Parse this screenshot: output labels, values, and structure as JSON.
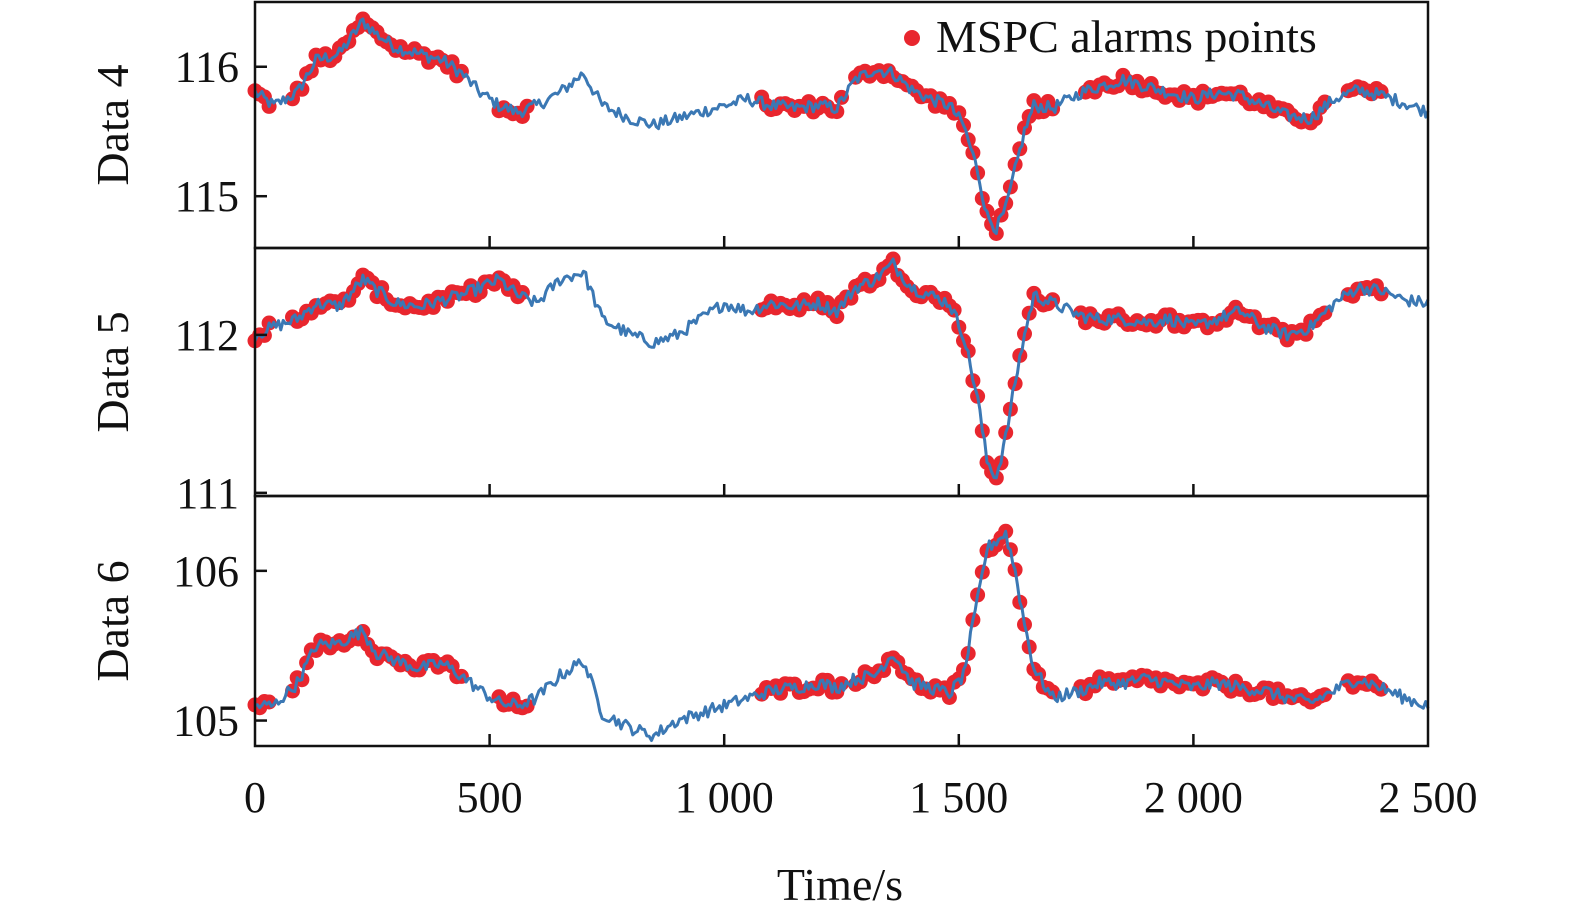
{
  "chart_data": [
    {
      "type": "line",
      "ylabel": "Data 4",
      "xlim": [
        0,
        2500
      ],
      "ylim": [
        114.6,
        116.5
      ],
      "yticks": [
        115,
        116
      ],
      "series": [
        {
          "values": [
            [
              0,
              115.8
            ],
            [
              40,
              115.7
            ],
            [
              90,
              115.8
            ],
            [
              130,
              116.05
            ],
            [
              180,
              116.1
            ],
            [
              230,
              116.35
            ],
            [
              260,
              116.25
            ],
            [
              300,
              116.15
            ],
            [
              350,
              116.1
            ],
            [
              400,
              116.05
            ],
            [
              440,
              115.95
            ],
            [
              480,
              115.8
            ],
            [
              520,
              115.7
            ],
            [
              560,
              115.65
            ],
            [
              600,
              115.7
            ],
            [
              650,
              115.8
            ],
            [
              700,
              115.95
            ],
            [
              740,
              115.7
            ],
            [
              800,
              115.6
            ],
            [
              850,
              115.55
            ],
            [
              900,
              115.6
            ],
            [
              950,
              115.65
            ],
            [
              1000,
              115.7
            ],
            [
              1050,
              115.75
            ],
            [
              1100,
              115.7
            ],
            [
              1150,
              115.68
            ],
            [
              1200,
              115.7
            ],
            [
              1240,
              115.68
            ],
            [
              1280,
              115.9
            ],
            [
              1320,
              115.98
            ],
            [
              1360,
              115.95
            ],
            [
              1400,
              115.82
            ],
            [
              1440,
              115.75
            ],
            [
              1480,
              115.7
            ],
            [
              1510,
              115.55
            ],
            [
              1540,
              115.2
            ],
            [
              1560,
              114.85
            ],
            [
              1580,
              114.75
            ],
            [
              1600,
              114.9
            ],
            [
              1620,
              115.2
            ],
            [
              1640,
              115.5
            ],
            [
              1660,
              115.7
            ],
            [
              1700,
              115.68
            ],
            [
              1760,
              115.8
            ],
            [
              1800,
              115.85
            ],
            [
              1850,
              115.9
            ],
            [
              1900,
              115.85
            ],
            [
              1950,
              115.8
            ],
            [
              2000,
              115.75
            ],
            [
              2050,
              115.8
            ],
            [
              2100,
              115.78
            ],
            [
              2150,
              115.7
            ],
            [
              2200,
              115.62
            ],
            [
              2250,
              115.6
            ],
            [
              2300,
              115.75
            ],
            [
              2350,
              115.82
            ],
            [
              2400,
              115.78
            ],
            [
              2450,
              115.72
            ],
            [
              2500,
              115.65
            ]
          ]
        }
      ],
      "alarm_ranges": [
        [
          0,
          30
        ],
        [
          80,
          440
        ],
        [
          520,
          580
        ],
        [
          1080,
          1250
        ],
        [
          1280,
          1330
        ],
        [
          1340,
          1700
        ],
        [
          1770,
          2280
        ],
        [
          2330,
          2400
        ]
      ],
      "legend": {
        "label": "MSPC alarms points",
        "color": "#e8262e",
        "position": "top-right"
      }
    },
    {
      "type": "line",
      "ylabel": "Data 5",
      "xlim": [
        0,
        2500
      ],
      "ylim": [
        110.98,
        112.55
      ],
      "yticks": [
        111,
        112
      ],
      "series": [
        {
          "values": [
            [
              0,
              112.0
            ],
            [
              40,
              112.05
            ],
            [
              90,
              112.1
            ],
            [
              130,
              112.2
            ],
            [
              180,
              112.18
            ],
            [
              230,
              112.35
            ],
            [
              260,
              112.28
            ],
            [
              300,
              112.2
            ],
            [
              350,
              112.18
            ],
            [
              400,
              112.22
            ],
            [
              440,
              112.25
            ],
            [
              480,
              112.3
            ],
            [
              520,
              112.35
            ],
            [
              560,
              112.25
            ],
            [
              600,
              112.2
            ],
            [
              650,
              112.35
            ],
            [
              700,
              112.4
            ],
            [
              740,
              112.1
            ],
            [
              800,
              112.0
            ],
            [
              850,
              111.95
            ],
            [
              900,
              112.0
            ],
            [
              950,
              112.1
            ],
            [
              1000,
              112.2
            ],
            [
              1050,
              112.15
            ],
            [
              1100,
              112.2
            ],
            [
              1150,
              112.18
            ],
            [
              1200,
              112.2
            ],
            [
              1240,
              112.15
            ],
            [
              1280,
              112.3
            ],
            [
              1320,
              112.35
            ],
            [
              1360,
              112.45
            ],
            [
              1400,
              112.3
            ],
            [
              1440,
              112.25
            ],
            [
              1480,
              112.2
            ],
            [
              1510,
              112.0
            ],
            [
              1540,
              111.6
            ],
            [
              1560,
              111.2
            ],
            [
              1580,
              111.1
            ],
            [
              1600,
              111.35
            ],
            [
              1620,
              111.7
            ],
            [
              1640,
              112.0
            ],
            [
              1660,
              112.25
            ],
            [
              1700,
              112.2
            ],
            [
              1760,
              112.12
            ],
            [
              1800,
              112.1
            ],
            [
              1850,
              112.1
            ],
            [
              1900,
              112.08
            ],
            [
              1950,
              112.1
            ],
            [
              2000,
              112.05
            ],
            [
              2050,
              112.1
            ],
            [
              2100,
              112.15
            ],
            [
              2150,
              112.05
            ],
            [
              2200,
              112.0
            ],
            [
              2250,
              112.05
            ],
            [
              2300,
              112.2
            ],
            [
              2350,
              112.3
            ],
            [
              2400,
              112.28
            ],
            [
              2450,
              112.22
            ],
            [
              2500,
              112.2
            ]
          ]
        }
      ],
      "alarm_ranges": [
        [
          0,
          30
        ],
        [
          80,
          570
        ],
        [
          1080,
          1330
        ],
        [
          1340,
          1700
        ],
        [
          1760,
          2280
        ],
        [
          2330,
          2400
        ]
      ]
    },
    {
      "type": "line",
      "ylabel": "Data 6",
      "xlim": [
        0,
        2500
      ],
      "ylim": [
        104.83,
        106.5
      ],
      "yticks": [
        105,
        106
      ],
      "series": [
        {
          "values": [
            [
              0,
              105.1
            ],
            [
              40,
              105.1
            ],
            [
              90,
              105.25
            ],
            [
              130,
              105.5
            ],
            [
              180,
              105.52
            ],
            [
              230,
              105.6
            ],
            [
              260,
              105.45
            ],
            [
              300,
              105.4
            ],
            [
              350,
              105.35
            ],
            [
              400,
              105.38
            ],
            [
              440,
              105.3
            ],
            [
              480,
              105.2
            ],
            [
              520,
              105.12
            ],
            [
              560,
              105.1
            ],
            [
              600,
              105.15
            ],
            [
              650,
              105.3
            ],
            [
              700,
              105.4
            ],
            [
              740,
              105.05
            ],
            [
              800,
              104.95
            ],
            [
              850,
              104.9
            ],
            [
              900,
              105.0
            ],
            [
              950,
              105.05
            ],
            [
              1000,
              105.1
            ],
            [
              1050,
              105.15
            ],
            [
              1100,
              105.2
            ],
            [
              1150,
              105.22
            ],
            [
              1200,
              105.25
            ],
            [
              1240,
              105.22
            ],
            [
              1280,
              105.28
            ],
            [
              1320,
              105.3
            ],
            [
              1360,
              105.45
            ],
            [
              1400,
              105.25
            ],
            [
              1440,
              105.22
            ],
            [
              1480,
              105.18
            ],
            [
              1510,
              105.3
            ],
            [
              1540,
              105.8
            ],
            [
              1560,
              106.15
            ],
            [
              1580,
              106.2
            ],
            [
              1600,
              106.25
            ],
            [
              1620,
              106.0
            ],
            [
              1640,
              105.65
            ],
            [
              1660,
              105.35
            ],
            [
              1700,
              105.15
            ],
            [
              1760,
              105.2
            ],
            [
              1800,
              105.25
            ],
            [
              1850,
              105.25
            ],
            [
              1900,
              105.28
            ],
            [
              1950,
              105.25
            ],
            [
              2000,
              105.22
            ],
            [
              2050,
              105.25
            ],
            [
              2100,
              105.22
            ],
            [
              2150,
              105.2
            ],
            [
              2200,
              105.15
            ],
            [
              2250,
              105.12
            ],
            [
              2300,
              105.2
            ],
            [
              2350,
              105.28
            ],
            [
              2400,
              105.22
            ],
            [
              2450,
              105.15
            ],
            [
              2500,
              105.1
            ]
          ]
        }
      ],
      "alarm_ranges": [
        [
          0,
          30
        ],
        [
          80,
          440
        ],
        [
          520,
          580
        ],
        [
          1080,
          1250
        ],
        [
          1280,
          1330
        ],
        [
          1340,
          1700
        ],
        [
          1760,
          2280
        ],
        [
          2330,
          2400
        ]
      ]
    }
  ],
  "xaxis": {
    "title": "Time/s",
    "ticks": [
      0,
      500,
      1000,
      1500,
      2000,
      2500
    ],
    "tick_labels": [
      "0",
      "500",
      "1 000",
      "1 500",
      "2 000",
      "2 500"
    ]
  },
  "colors": {
    "line": "#3b78b4",
    "alarm": "#e8262e",
    "axis": "#111111"
  }
}
